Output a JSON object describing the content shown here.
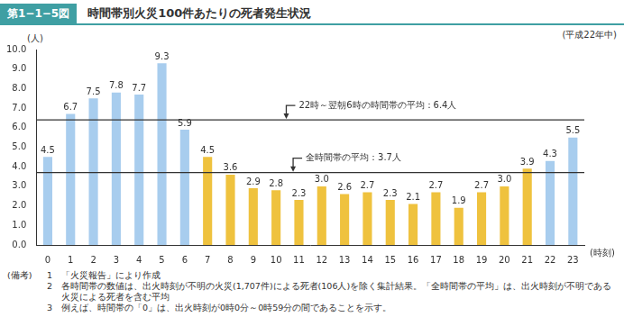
{
  "chart_data": {
    "type": "bar",
    "figure_number": "第1−1−5図",
    "title": "時間帯別火災100件あたりの死者発生状況",
    "subtitle": "(平成22年中)",
    "y_label": "(人)",
    "x_label": "(時刻)",
    "categories": [
      "0",
      "1",
      "2",
      "3",
      "4",
      "5",
      "6",
      "7",
      "8",
      "9",
      "10",
      "11",
      "12",
      "13",
      "14",
      "15",
      "16",
      "17",
      "18",
      "19",
      "20",
      "21",
      "22",
      "23"
    ],
    "values": [
      4.5,
      6.7,
      7.5,
      7.8,
      7.7,
      9.3,
      5.9,
      4.5,
      3.6,
      2.9,
      2.8,
      2.3,
      3.0,
      2.6,
      2.7,
      2.3,
      2.1,
      2.7,
      1.9,
      2.7,
      3.0,
      3.9,
      4.3,
      5.5
    ],
    "value_labels": [
      "4.5",
      "6.7",
      "7.5",
      "7.8",
      "7.7",
      "9.3",
      "5.9",
      "4.5",
      "3.6",
      "2.9",
      "2.8",
      "2.3",
      "3.0",
      "2.6",
      "2.7",
      "2.3",
      "2.1",
      "2.7",
      "1.9",
      "2.7",
      "3.0",
      "3.9",
      "4.3",
      "5.5"
    ],
    "colors": [
      "#a8cdee",
      "#a8cdee",
      "#a8cdee",
      "#a8cdee",
      "#a8cdee",
      "#a8cdee",
      "#a8cdee",
      "#efc23e",
      "#efc23e",
      "#efc23e",
      "#efc23e",
      "#efc23e",
      "#efc23e",
      "#efc23e",
      "#efc23e",
      "#efc23e",
      "#efc23e",
      "#efc23e",
      "#efc23e",
      "#efc23e",
      "#efc23e",
      "#efc23e",
      "#a8cdee",
      "#a8cdee"
    ],
    "ylim": [
      0,
      10
    ],
    "yticks": [
      {
        "value": 0,
        "label": "0.0"
      },
      {
        "value": 1,
        "label": "1.0"
      },
      {
        "value": 2,
        "label": "2.0"
      },
      {
        "value": 3,
        "label": "3.0"
      },
      {
        "value": 4,
        "label": "4.0"
      },
      {
        "value": 5,
        "label": "5.0"
      },
      {
        "value": 6,
        "label": "6.0"
      },
      {
        "value": 7,
        "label": "7.0"
      },
      {
        "value": 8,
        "label": "8.0"
      },
      {
        "value": 9,
        "label": "9.0"
      },
      {
        "value": 10,
        "label": "10.0"
      }
    ],
    "grid": false,
    "data_labels": true,
    "annotations": [
      {
        "value": 6.4,
        "label": "22時～翌朝6時の時間帯の平均：6.4人"
      },
      {
        "value": 3.7,
        "label": "全時間帯の平均：3.7人"
      }
    ],
    "notes_label": "(備考)",
    "notes": [
      {
        "number": "1",
        "text": "「火災報告」により作成"
      },
      {
        "number": "2",
        "text": "各時間帯の数値は、出火時刻が不明の火災(1,707件)による死者(106人)を除く集計結果。「全時間帯の平均」は、出火時刻が不明である火災による死者を含む平均"
      },
      {
        "number": "3",
        "text": "例えば、時間帯の「0」は、出火時刻が0時0分～0時59分の間であることを示す。"
      }
    ]
  }
}
